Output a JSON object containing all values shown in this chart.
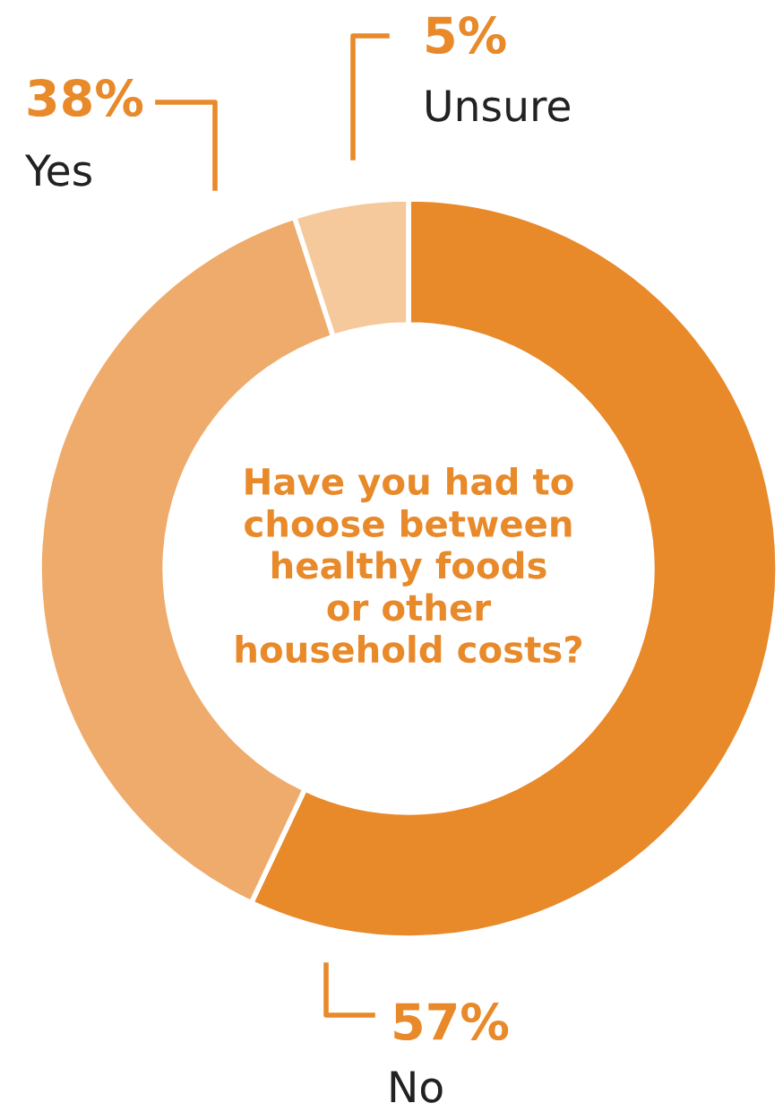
{
  "chart_data": {
    "type": "donut",
    "title": "Have you had to\nchoose between\nhealthy foods\nor other\nhousehold costs?",
    "categories": [
      "No",
      "Yes",
      "Unsure"
    ],
    "values": [
      57,
      38,
      5
    ],
    "colors": [
      "#e8892a",
      "#efab6b",
      "#f6c99c"
    ],
    "value_labels": [
      "57%",
      "38%",
      "5%"
    ]
  }
}
